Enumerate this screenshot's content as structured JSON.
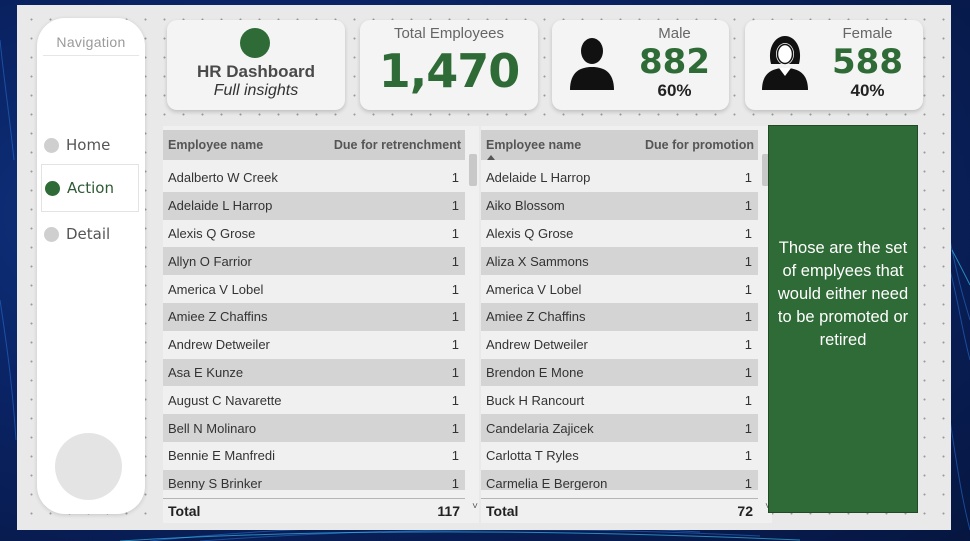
{
  "navigation": {
    "title": "Navigation",
    "items": [
      {
        "label": "Home"
      },
      {
        "label": "Action"
      },
      {
        "label": "Detail"
      }
    ]
  },
  "header_card": {
    "title": "HR Dashboard",
    "subtitle": "Full insights"
  },
  "total_card": {
    "label": "Total Employees",
    "value": "1,470"
  },
  "male_card": {
    "label": "Male",
    "value": "882",
    "percent": "60%",
    "icon": "male-person-icon"
  },
  "female_card": {
    "label": "Female",
    "value": "588",
    "percent": "40%",
    "icon": "female-person-icon"
  },
  "retrenchment_table": {
    "columns": [
      "Employee name",
      "Due for retrenchment"
    ],
    "rows": [
      {
        "name": "Adalberto W Creek",
        "value": "1"
      },
      {
        "name": "Adelaide L Harrop",
        "value": "1"
      },
      {
        "name": "Alexis Q Grose",
        "value": "1"
      },
      {
        "name": "Allyn O Farrior",
        "value": "1"
      },
      {
        "name": "America V Lobel",
        "value": "1"
      },
      {
        "name": "Amiee Z Chaffins",
        "value": "1"
      },
      {
        "name": "Andrew Detweiler",
        "value": "1"
      },
      {
        "name": "Asa E Kunze",
        "value": "1"
      },
      {
        "name": "August C Navarette",
        "value": "1"
      },
      {
        "name": "Bell N Molinaro",
        "value": "1"
      },
      {
        "name": "Bennie E Manfredi",
        "value": "1"
      },
      {
        "name": "Benny S Brinker",
        "value": "1"
      }
    ],
    "total_label": "Total",
    "total_value": "117"
  },
  "promotion_table": {
    "columns": [
      "Employee name",
      "Due for promotion"
    ],
    "rows": [
      {
        "name": "Adelaide L Harrop",
        "value": "1"
      },
      {
        "name": "Aiko Blossom",
        "value": "1"
      },
      {
        "name": "Alexis Q Grose",
        "value": "1"
      },
      {
        "name": "Aliza X Sammons",
        "value": "1"
      },
      {
        "name": "America V Lobel",
        "value": "1"
      },
      {
        "name": "Amiee Z Chaffins",
        "value": "1"
      },
      {
        "name": "Andrew Detweiler",
        "value": "1"
      },
      {
        "name": "Brendon E Mone",
        "value": "1"
      },
      {
        "name": "Buck H Rancourt",
        "value": "1"
      },
      {
        "name": "Candelaria Zajicek",
        "value": "1"
      },
      {
        "name": "Carlotta T Ryles",
        "value": "1"
      },
      {
        "name": "Carmelia E Bergeron",
        "value": "1"
      }
    ],
    "total_label": "Total",
    "total_value": "72"
  },
  "note": {
    "text": "Those are the set of emplyees that would either need to be promoted or retired"
  },
  "colors": {
    "accent_green": "#2f6b36",
    "background_blue": "#0a2466",
    "panel_gray": "#e9e9e9"
  }
}
